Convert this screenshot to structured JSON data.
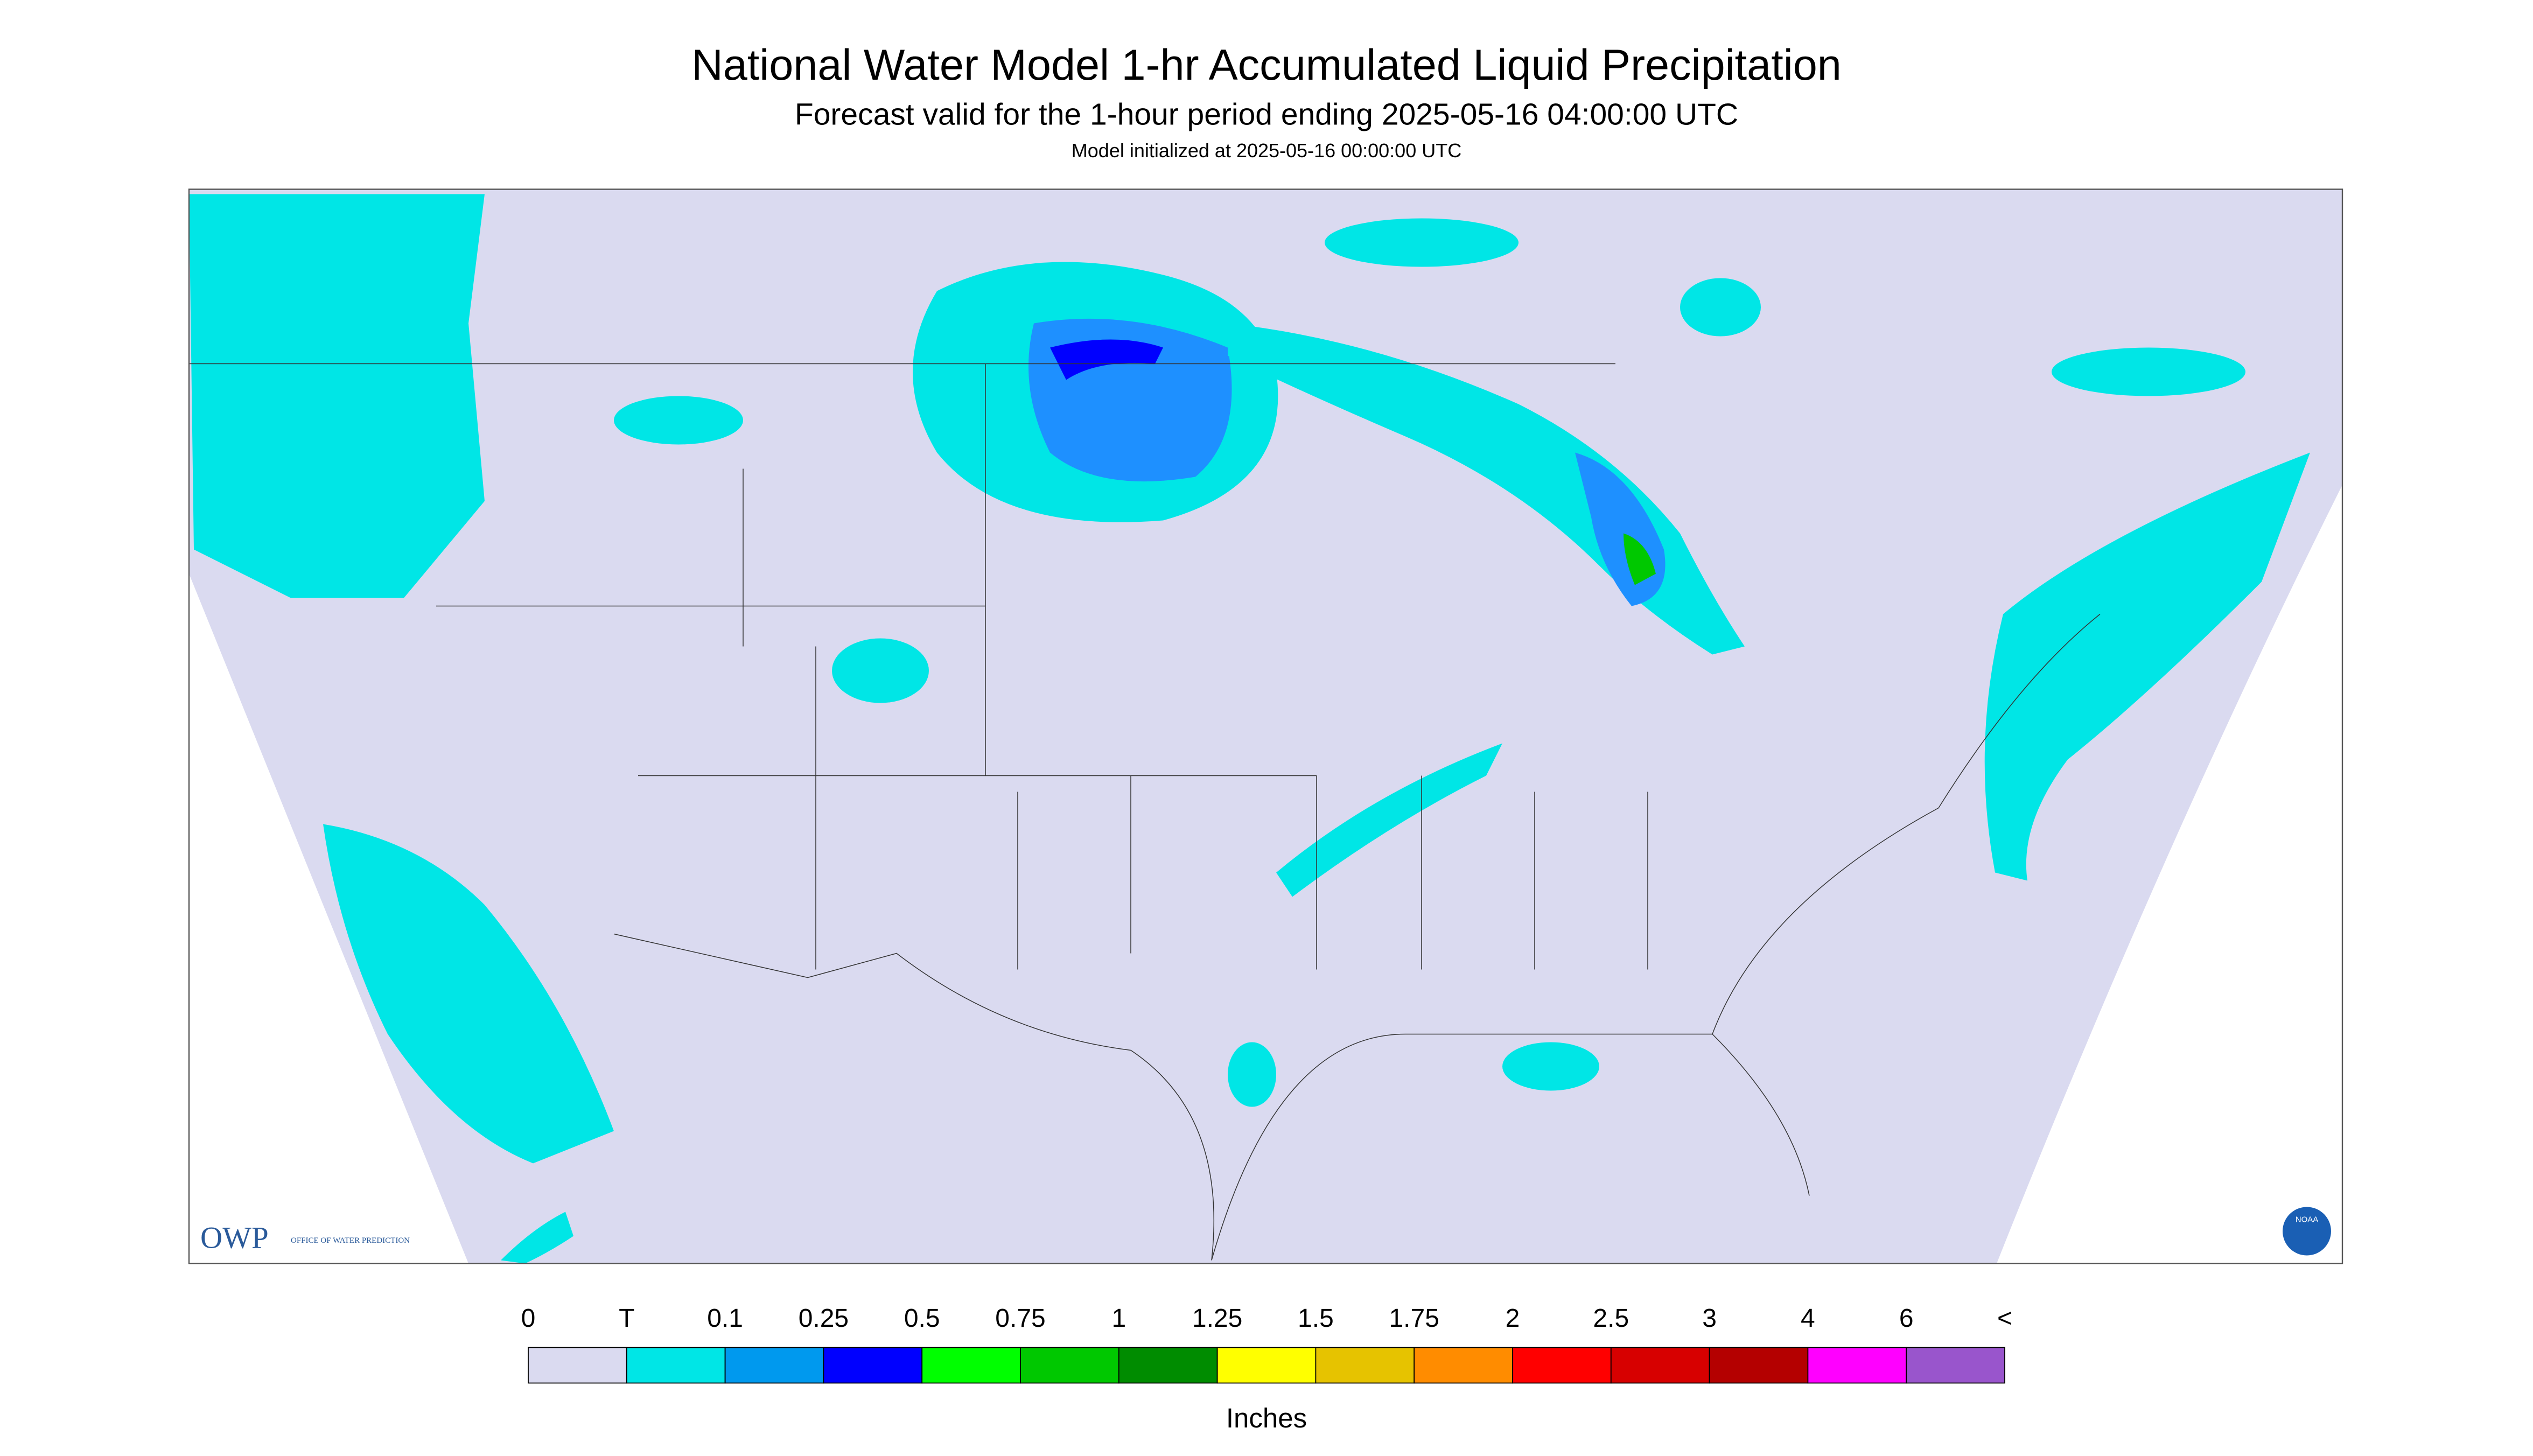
{
  "header": {
    "title": "National Water Model 1-hr Accumulated Liquid Precipitation",
    "subtitle": "Forecast valid for the 1-hour period ending 2025-05-16 04:00:00 UTC",
    "init": "Model initialized at 2025-05-16 00:00:00 UTC"
  },
  "legend": {
    "labels": [
      "0",
      "T",
      "0.1",
      "0.25",
      "0.5",
      "0.75",
      "1",
      "1.25",
      "1.5",
      "1.75",
      "2",
      "2.5",
      "3",
      "4",
      "6",
      "<"
    ],
    "colors": [
      "#dadaf0",
      "#00e6e6",
      "#0099ee",
      "#0000ff",
      "#00ff00",
      "#00c800",
      "#008c00",
      "#ffff00",
      "#e6c300",
      "#ff8c00",
      "#ff0000",
      "#d70000",
      "#b40000",
      "#ff00ff",
      "#9955cc"
    ],
    "unit": "Inches"
  },
  "logos": {
    "owp": "OWP",
    "owp_text": "OFFICE OF WATER PREDICTION",
    "noaa": "NOAA"
  }
}
